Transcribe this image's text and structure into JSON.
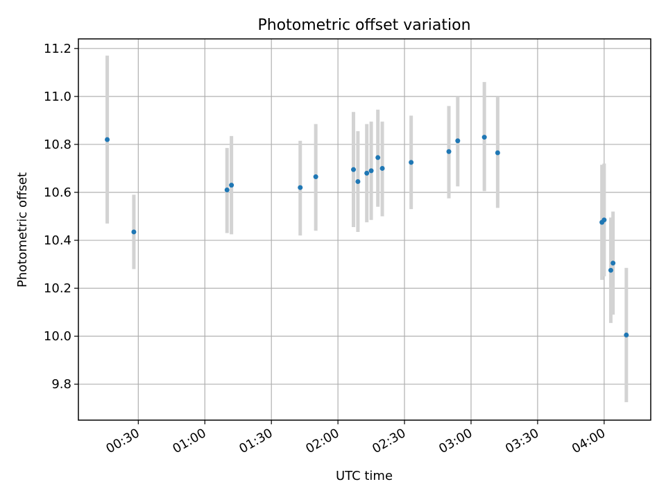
{
  "chart_data": {
    "type": "scatter",
    "title": "Photometric offset variation",
    "xlabel": "UTC time",
    "ylabel": "Photometric offset",
    "x_axis_type": "time",
    "xlim": [
      "00:03",
      "04:21"
    ],
    "ylim": [
      9.65,
      11.24
    ],
    "xticks": [
      "00:30",
      "01:00",
      "01:30",
      "02:00",
      "02:30",
      "03:00",
      "03:30",
      "04:00"
    ],
    "yticks": [
      "9.8",
      "10.0",
      "10.2",
      "10.4",
      "10.6",
      "10.8",
      "11.0",
      "11.2"
    ],
    "grid": true,
    "point_color": "#1f77b4",
    "errorbar_color": "#d3d3d3",
    "series": [
      {
        "points": [
          {
            "x": "00:16",
            "y": 10.82,
            "ylow": 10.47,
            "yhigh": 11.17
          },
          {
            "x": "00:28",
            "y": 10.435,
            "ylow": 10.28,
            "yhigh": 10.59
          },
          {
            "x": "01:10",
            "y": 10.61,
            "ylow": 10.43,
            "yhigh": 10.785
          },
          {
            "x": "01:12",
            "y": 10.63,
            "ylow": 10.425,
            "yhigh": 10.835
          },
          {
            "x": "01:43",
            "y": 10.62,
            "ylow": 10.42,
            "yhigh": 10.815
          },
          {
            "x": "01:50",
            "y": 10.665,
            "ylow": 10.44,
            "yhigh": 10.885
          },
          {
            "x": "02:07",
            "y": 10.695,
            "ylow": 10.455,
            "yhigh": 10.935
          },
          {
            "x": "02:09",
            "y": 10.645,
            "ylow": 10.435,
            "yhigh": 10.855
          },
          {
            "x": "02:13",
            "y": 10.68,
            "ylow": 10.475,
            "yhigh": 10.885
          },
          {
            "x": "02:15",
            "y": 10.69,
            "ylow": 10.485,
            "yhigh": 10.895
          },
          {
            "x": "02:18",
            "y": 10.745,
            "ylow": 10.54,
            "yhigh": 10.945
          },
          {
            "x": "02:20",
            "y": 10.7,
            "ylow": 10.5,
            "yhigh": 10.895
          },
          {
            "x": "02:33",
            "y": 10.725,
            "ylow": 10.53,
            "yhigh": 10.92
          },
          {
            "x": "02:50",
            "y": 10.77,
            "ylow": 10.575,
            "yhigh": 10.96
          },
          {
            "x": "02:54",
            "y": 10.815,
            "ylow": 10.625,
            "yhigh": 11.0
          },
          {
            "x": "03:06",
            "y": 10.83,
            "ylow": 10.605,
            "yhigh": 11.06
          },
          {
            "x": "03:12",
            "y": 10.765,
            "ylow": 10.535,
            "yhigh": 11.0
          },
          {
            "x": "03:59",
            "y": 10.475,
            "ylow": 10.235,
            "yhigh": 10.715
          },
          {
            "x": "04:00",
            "y": 10.485,
            "ylow": 10.25,
            "yhigh": 10.72
          },
          {
            "x": "04:03",
            "y": 10.275,
            "ylow": 10.055,
            "yhigh": 10.495
          },
          {
            "x": "04:04",
            "y": 10.305,
            "ylow": 10.09,
            "yhigh": 10.52
          },
          {
            "x": "04:10",
            "y": 10.005,
            "ylow": 9.725,
            "yhigh": 10.285
          }
        ]
      }
    ]
  }
}
